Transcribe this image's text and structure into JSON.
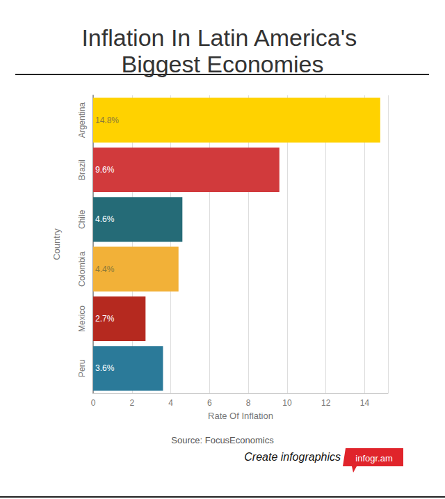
{
  "chart_data": {
    "type": "bar",
    "orientation": "horizontal",
    "title": "Inflation In Latin America's Biggest Economies",
    "x_label": "Rate Of Inflation",
    "y_label": "Country",
    "categories": [
      "Argentina",
      "Brazil",
      "Chile",
      "Colombia",
      "Mexico",
      "Peru"
    ],
    "values": [
      14.8,
      9.6,
      4.6,
      4.4,
      2.7,
      3.6
    ],
    "value_labels": [
      "14.8%",
      "9.6%",
      "4.6%",
      "4.4%",
      "2.7%",
      "3.6%"
    ],
    "colors": [
      "#ffd200",
      "#d13a3c",
      "#256b77",
      "#f2b138",
      "#b5291f",
      "#2b7a99"
    ],
    "data_labels": true,
    "xlim": [
      0,
      15.2
    ],
    "xticks": [
      0,
      2,
      4,
      6,
      8,
      10,
      12,
      14
    ],
    "grid": true,
    "annotations": [
      "Source: FocusEconomics",
      "Create infographics",
      "infogr.am"
    ]
  }
}
